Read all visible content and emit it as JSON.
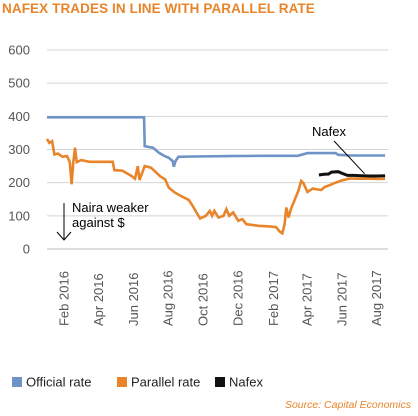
{
  "header": {
    "title": "NAFEX TRADES IN LINE WITH PARALLEL RATE"
  },
  "source": "Source: Capital Economics",
  "chart_data": {
    "type": "line",
    "title": "NAFEX TRADES IN LINE WITH PARALLEL RATE",
    "xlabel": "",
    "ylabel": "",
    "ylim": [
      0,
      600
    ],
    "yticks": [
      0,
      100,
      200,
      300,
      400,
      500,
      600
    ],
    "xrange": [
      "2016-01-01",
      "2017-08-20"
    ],
    "xticks": [
      {
        "date": "2016-02-01",
        "label": "Feb 2016"
      },
      {
        "date": "2016-04-01",
        "label": "Apr 2016"
      },
      {
        "date": "2016-06-01",
        "label": "Jun 2016"
      },
      {
        "date": "2016-08-01",
        "label": "Aug 2016"
      },
      {
        "date": "2016-10-01",
        "label": "Oct 2016"
      },
      {
        "date": "2016-12-01",
        "label": "Dec 2016"
      },
      {
        "date": "2017-02-01",
        "label": "Feb 2017"
      },
      {
        "date": "2017-04-01",
        "label": "Apr 2017"
      },
      {
        "date": "2017-06-01",
        "label": "Jun 2017"
      },
      {
        "date": "2017-08-01",
        "label": "Aug 2017"
      }
    ],
    "grid": true,
    "legend_position": "bottom",
    "series": [
      {
        "name": "Official rate",
        "color": "#6f93c6",
        "points": [
          [
            "2016-01-01",
            397
          ],
          [
            "2016-06-19",
            397
          ],
          [
            "2016-06-20",
            310
          ],
          [
            "2016-07-05",
            305
          ],
          [
            "2016-07-15",
            290
          ],
          [
            "2016-07-25",
            280
          ],
          [
            "2016-08-01",
            275
          ],
          [
            "2016-08-08",
            265
          ],
          [
            "2016-08-10",
            248
          ],
          [
            "2016-08-13",
            265
          ],
          [
            "2016-08-18",
            278
          ],
          [
            "2016-09-15",
            279
          ],
          [
            "2016-11-15",
            280
          ],
          [
            "2017-01-15",
            281
          ],
          [
            "2017-03-15",
            281
          ],
          [
            "2017-04-01",
            289
          ],
          [
            "2017-05-20",
            289
          ],
          [
            "2017-05-25",
            284
          ],
          [
            "2017-06-15",
            282
          ],
          [
            "2017-07-15",
            282
          ],
          [
            "2017-08-15",
            282
          ]
        ]
      },
      {
        "name": "Parallel rate",
        "color": "#e8842a",
        "points": [
          [
            "2016-01-01",
            332
          ],
          [
            "2016-01-05",
            320
          ],
          [
            "2016-01-10",
            325
          ],
          [
            "2016-01-14",
            285
          ],
          [
            "2016-01-20",
            288
          ],
          [
            "2016-01-28",
            278
          ],
          [
            "2016-02-05",
            280
          ],
          [
            "2016-02-10",
            262
          ],
          [
            "2016-02-13",
            195
          ],
          [
            "2016-02-16",
            262
          ],
          [
            "2016-02-19",
            305
          ],
          [
            "2016-02-22",
            262
          ],
          [
            "2016-03-01",
            268
          ],
          [
            "2016-03-15",
            263
          ],
          [
            "2016-04-10",
            263
          ],
          [
            "2016-04-25",
            263
          ],
          [
            "2016-04-28",
            238
          ],
          [
            "2016-05-12",
            236
          ],
          [
            "2016-05-20",
            228
          ],
          [
            "2016-05-28",
            220
          ],
          [
            "2016-06-03",
            212
          ],
          [
            "2016-06-08",
            250
          ],
          [
            "2016-06-11",
            208
          ],
          [
            "2016-06-20",
            250
          ],
          [
            "2016-07-01",
            245
          ],
          [
            "2016-07-12",
            228
          ],
          [
            "2016-07-18",
            218
          ],
          [
            "2016-07-26",
            210
          ],
          [
            "2016-08-01",
            185
          ],
          [
            "2016-08-12",
            170
          ],
          [
            "2016-08-22",
            160
          ],
          [
            "2016-09-05",
            148
          ],
          [
            "2016-09-12",
            130
          ],
          [
            "2016-09-18",
            112
          ],
          [
            "2016-09-25",
            92
          ],
          [
            "2016-10-05",
            100
          ],
          [
            "2016-10-12",
            115
          ],
          [
            "2016-10-16",
            100
          ],
          [
            "2016-10-20",
            115
          ],
          [
            "2016-10-27",
            95
          ],
          [
            "2016-11-05",
            100
          ],
          [
            "2016-11-10",
            120
          ],
          [
            "2016-11-15",
            100
          ],
          [
            "2016-11-22",
            110
          ],
          [
            "2016-12-01",
            85
          ],
          [
            "2016-12-08",
            90
          ],
          [
            "2016-12-15",
            75
          ],
          [
            "2017-01-05",
            70
          ],
          [
            "2017-01-25",
            68
          ],
          [
            "2017-02-05",
            66
          ],
          [
            "2017-02-12",
            52
          ],
          [
            "2017-02-16",
            47
          ],
          [
            "2017-02-20",
            75
          ],
          [
            "2017-02-23",
            125
          ],
          [
            "2017-02-27",
            95
          ],
          [
            "2017-03-03",
            120
          ],
          [
            "2017-03-10",
            150
          ],
          [
            "2017-03-16",
            175
          ],
          [
            "2017-03-21",
            205
          ],
          [
            "2017-03-25",
            198
          ],
          [
            "2017-04-01",
            172
          ],
          [
            "2017-04-10",
            182
          ],
          [
            "2017-04-25",
            178
          ],
          [
            "2017-05-01",
            187
          ],
          [
            "2017-05-12",
            194
          ],
          [
            "2017-05-20",
            200
          ],
          [
            "2017-06-01",
            207
          ],
          [
            "2017-06-15",
            213
          ],
          [
            "2017-07-01",
            212
          ],
          [
            "2017-07-20",
            212
          ],
          [
            "2017-08-05",
            211
          ],
          [
            "2017-08-15",
            212
          ]
        ]
      },
      {
        "name": "Nafex",
        "color": "#111111",
        "points": [
          [
            "2017-04-21",
            223
          ],
          [
            "2017-04-28",
            225
          ],
          [
            "2017-05-08",
            226
          ],
          [
            "2017-05-13",
            232
          ],
          [
            "2017-05-25",
            233
          ],
          [
            "2017-06-01",
            228
          ],
          [
            "2017-06-10",
            222
          ],
          [
            "2017-06-20",
            222
          ],
          [
            "2017-07-05",
            221
          ],
          [
            "2017-07-20",
            220
          ],
          [
            "2017-08-01",
            220
          ],
          [
            "2017-08-15",
            221
          ]
        ]
      }
    ],
    "annotations": [
      {
        "label": "Nafex",
        "text": "Nafex",
        "kind": "callout",
        "target": [
          "2017-07-10",
          221
        ]
      },
      {
        "label": "Naira weaker",
        "text": "Naira weaker",
        "kind": "text"
      },
      {
        "label": "against $",
        "text": "against $",
        "kind": "text",
        "arrow": "down"
      }
    ]
  }
}
